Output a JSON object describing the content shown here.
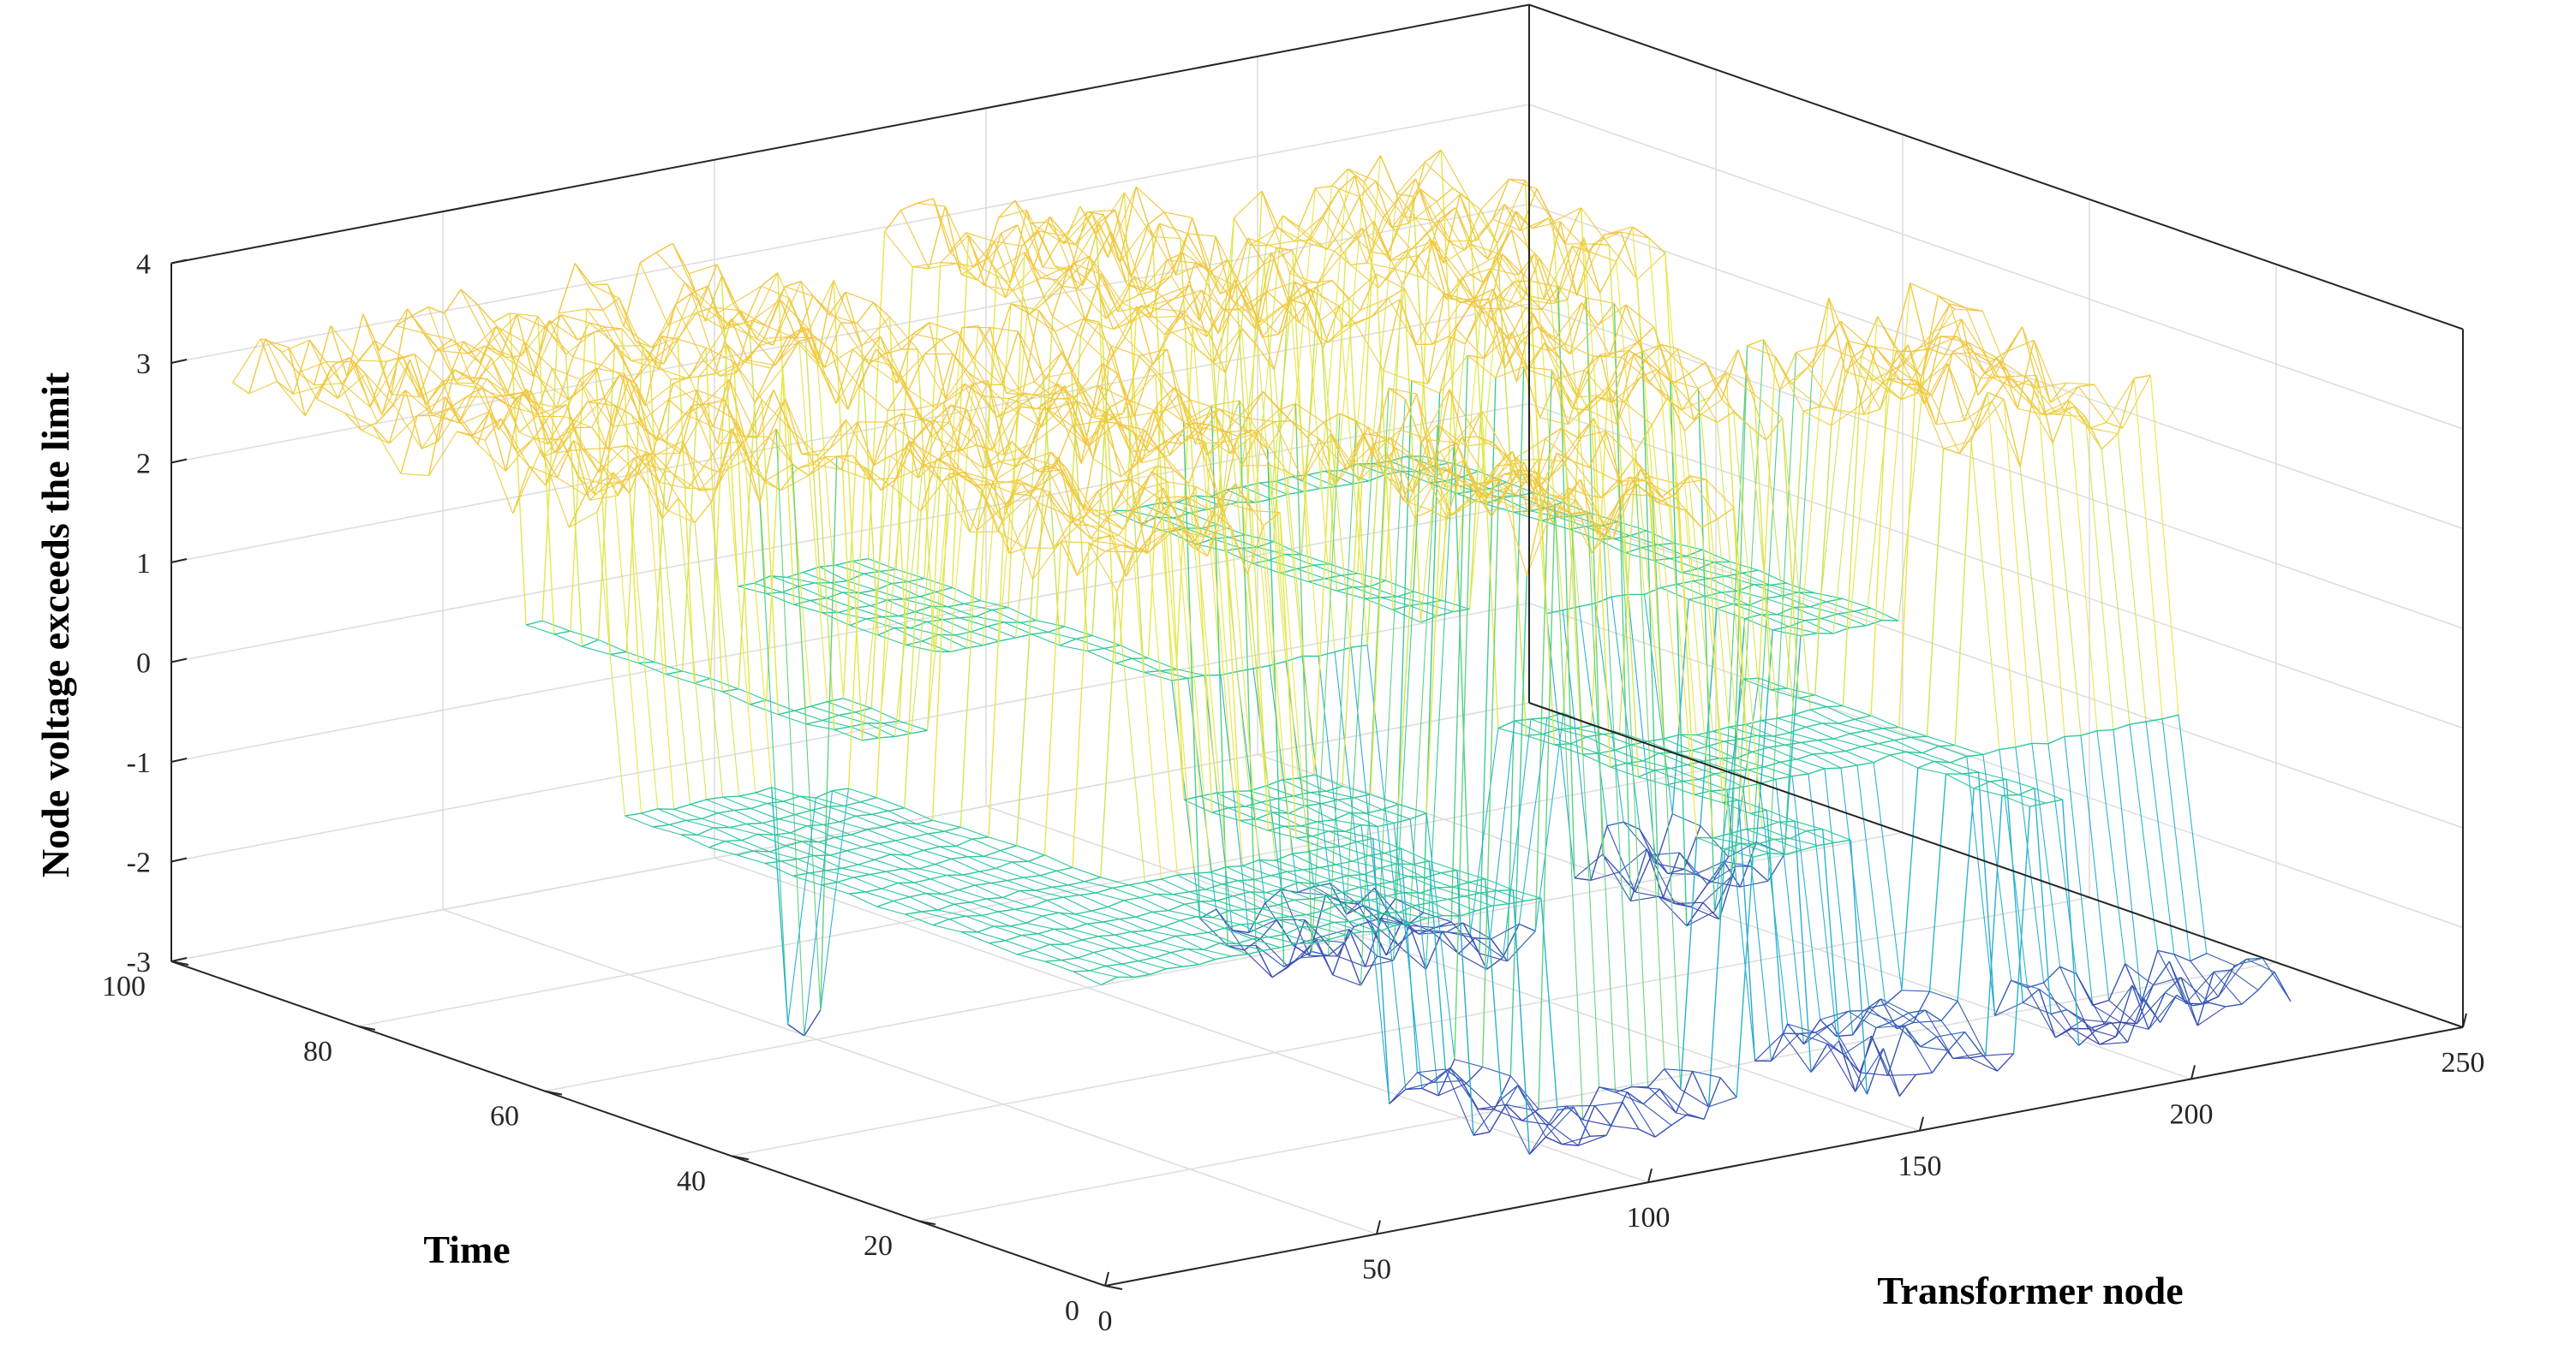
{
  "chart_data": {
    "type": "surface",
    "title": "",
    "xlabel": "Transformer node",
    "ylabel": "Time",
    "zlabel": "Node voltage exceeds the limit",
    "xlim": [
      0,
      250
    ],
    "ylim": [
      0,
      100
    ],
    "zlim": [
      -3,
      4
    ],
    "x_ticks": [
      "0",
      "50",
      "100",
      "150",
      "200",
      "250"
    ],
    "y_ticks": [
      "0",
      "20",
      "40",
      "60",
      "80",
      "100"
    ],
    "z_ticks": [
      "-3",
      "-2",
      "-1",
      "0",
      "1",
      "2",
      "3",
      "4"
    ],
    "grid": true,
    "colormap": "parula",
    "colors": {
      "low": "#3e26a8",
      "mid_low": "#2ab3d0",
      "zero": "#2ec79a",
      "mid_high": "#e6e84a",
      "high": "#f5b93c"
    },
    "x_range_nodes": [
      1,
      220
    ],
    "y_range_time": [
      1,
      96
    ],
    "typical_values": {
      "exceed_upper": 3,
      "normal": 0,
      "exceed_lower": -2.5
    },
    "blocks": [
      {
        "x": [
          1,
          52
        ],
        "y": [
          55,
          96
        ],
        "value": 3
      },
      {
        "x": [
          60,
          92
        ],
        "y": [
          70,
          96
        ],
        "value": 3
      },
      {
        "x": [
          40,
          70
        ],
        "y": [
          20,
          55
        ],
        "value": 3
      },
      {
        "x": [
          70,
          110
        ],
        "y": [
          35,
          70
        ],
        "value": 3
      },
      {
        "x": [
          100,
          135
        ],
        "y": [
          10,
          40
        ],
        "value": 3
      },
      {
        "x": [
          120,
          160
        ],
        "y": [
          60,
          96
        ],
        "value": 3
      },
      {
        "x": [
          150,
          180
        ],
        "y": [
          30,
          60
        ],
        "value": 3
      },
      {
        "x": [
          175,
          210
        ],
        "y": [
          60,
          90
        ],
        "value": 3
      },
      {
        "x": [
          185,
          220
        ],
        "y": [
          15,
          40
        ],
        "value": 3
      },
      {
        "x": [
          85,
          120
        ],
        "y": [
          1,
          20
        ],
        "value": -2.5
      },
      {
        "x": [
          140,
          170
        ],
        "y": [
          1,
          15
        ],
        "value": -2.5
      },
      {
        "x": [
          180,
          220
        ],
        "y": [
          1,
          12
        ],
        "value": -2.5
      },
      {
        "x": [
          110,
          150
        ],
        "y": [
          40,
          55
        ],
        "value": -2.5
      },
      {
        "x": [
          30,
          45
        ],
        "y": [
          50,
          62
        ],
        "value": -2.5
      },
      {
        "x": [
          160,
          200
        ],
        "y": [
          40,
          55
        ],
        "value": -2.5
      }
    ]
  }
}
